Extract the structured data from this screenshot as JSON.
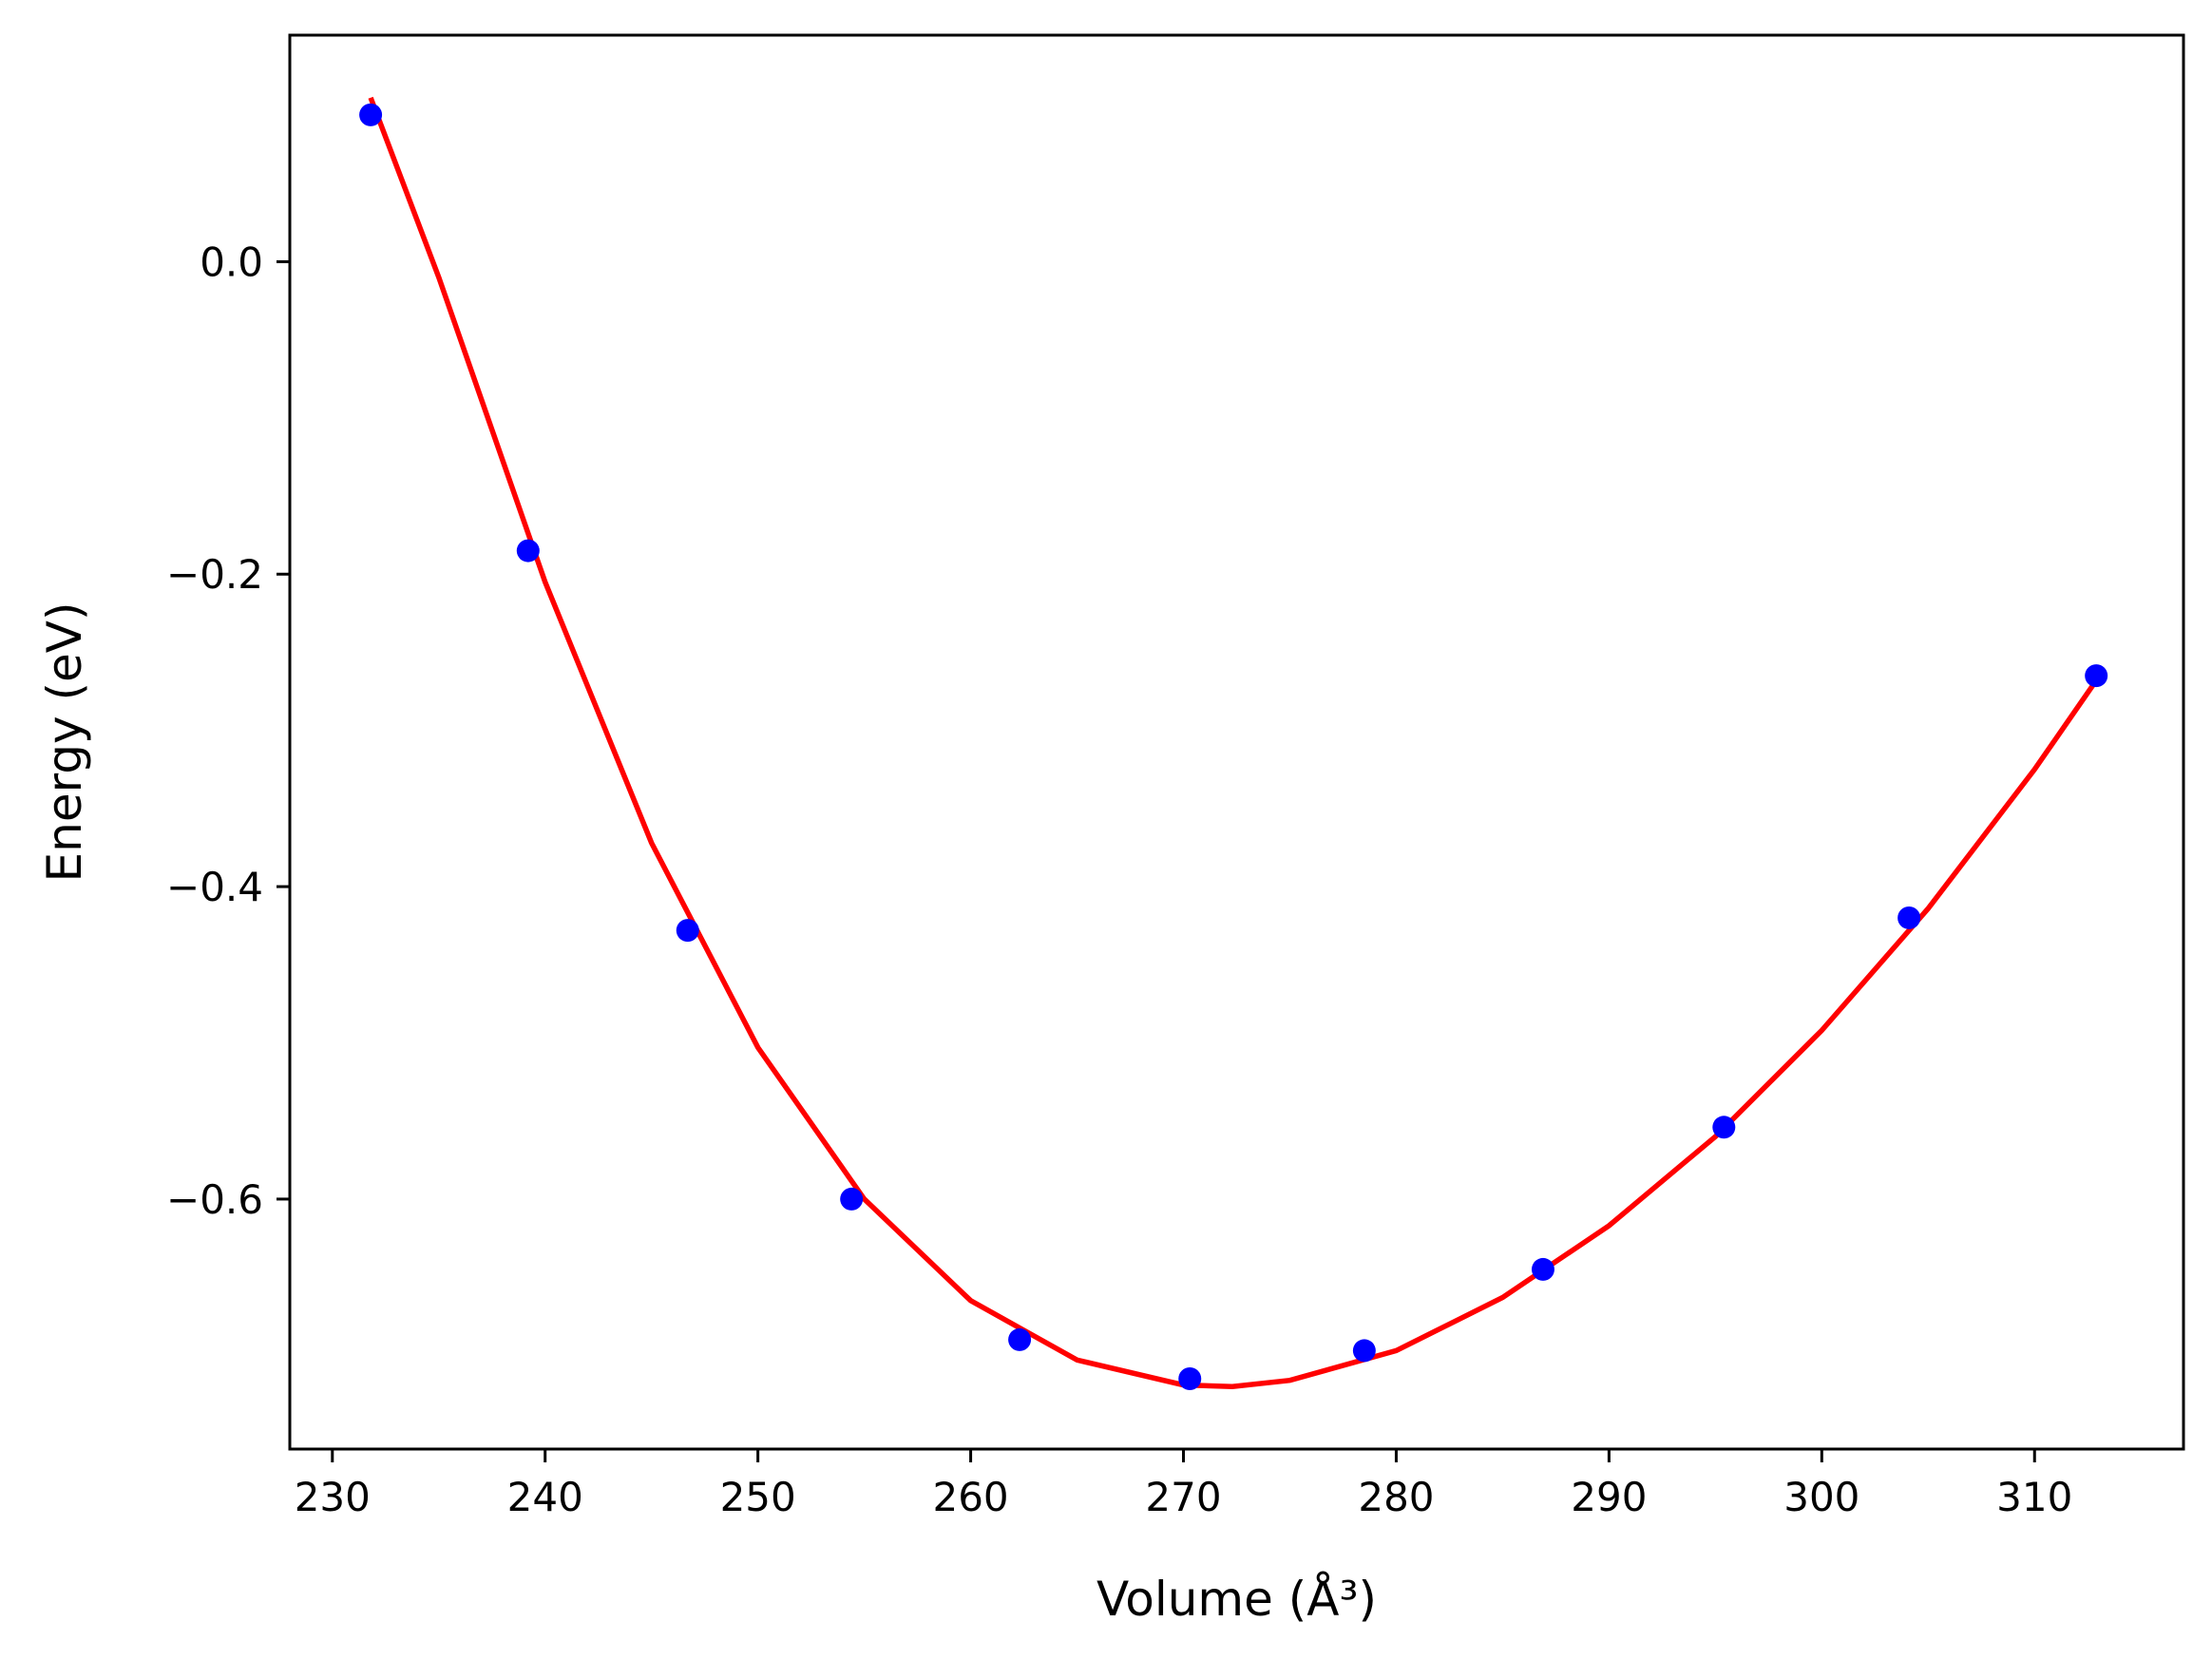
{
  "chart_data": {
    "type": "scatter",
    "title": "",
    "xlabel": "Volume (Å³)",
    "ylabel": "Energy (eV)",
    "xlim": [
      228,
      317
    ],
    "ylim": [
      -0.76,
      0.145
    ],
    "x_ticks": [
      230,
      240,
      250,
      260,
      270,
      280,
      290,
      300,
      310
    ],
    "y_ticks": [
      0.0,
      -0.2,
      -0.4,
      -0.6
    ],
    "y_tick_labels": [
      "0.0",
      "−0.2",
      "−0.4",
      "−0.6"
    ],
    "grid": false,
    "legend": "none",
    "series": [
      {
        "kind": "scatter",
        "color": "#0000ff",
        "marker": "circle",
        "x": [
          231.8,
          239.2,
          246.7,
          254.4,
          262.3,
          270.3,
          278.5,
          286.9,
          295.4,
          304.1,
          312.9
        ],
        "y": [
          0.094,
          -0.185,
          -0.428,
          -0.6,
          -0.69,
          -0.715,
          -0.697,
          -0.645,
          -0.554,
          -0.42,
          -0.265
        ]
      },
      {
        "kind": "line",
        "color": "#ff0000",
        "x": [
          231.8,
          235,
          240,
          245,
          250,
          255,
          260,
          265,
          270,
          272.3,
          275,
          280,
          285,
          290,
          295,
          300,
          305,
          310,
          312.9
        ],
        "y": [
          0.105,
          -0.01,
          -0.205,
          -0.372,
          -0.503,
          -0.6,
          -0.665,
          -0.703,
          -0.719,
          -0.72,
          -0.716,
          -0.697,
          -0.663,
          -0.617,
          -0.56,
          -0.492,
          -0.414,
          -0.325,
          -0.268
        ]
      }
    ]
  }
}
